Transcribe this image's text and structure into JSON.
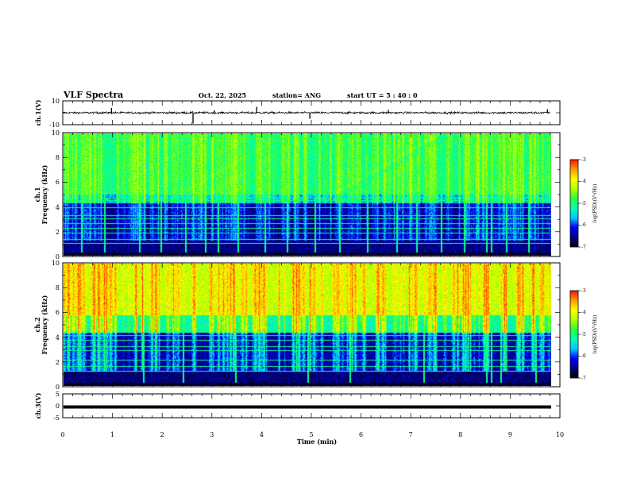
{
  "header": {
    "title": "VLF Spectra",
    "date": "Oct. 22, 2025",
    "station": "station= ANG",
    "start_ut": "start  UT =   5  : 40 : 0"
  },
  "colors": {
    "background": "#ffffff",
    "axis": "#000000",
    "colormap": [
      "#000000",
      "#00008b",
      "#0000ff",
      "#00c8ff",
      "#00ffb4",
      "#28ff3c",
      "#b4ff00",
      "#ffff00",
      "#ffa000",
      "#ff1400",
      "#f0f0ff"
    ]
  },
  "chart_data": [
    {
      "type": "line",
      "name": "ch1-waveform",
      "ylabel": "ch.1(V)",
      "ylim": [
        -10,
        10
      ],
      "y_ticks": [
        "10",
        "-10"
      ],
      "xlim": [
        0,
        10
      ],
      "baseline": 0,
      "noise_amplitude": 1.2,
      "spikes": [
        {
          "x": 0.98,
          "y": 4
        },
        {
          "x": 2.62,
          "y": -9
        },
        {
          "x": 3.05,
          "y": 2
        },
        {
          "x": 3.9,
          "y": 5
        },
        {
          "x": 4.97,
          "y": -5
        },
        {
          "x": 6.55,
          "y": 2.5
        },
        {
          "x": 9.75,
          "y": 3
        }
      ]
    },
    {
      "type": "heatmap",
      "name": "ch1-spectrogram",
      "ylabel": "ch.1\nFrequency (kHz)",
      "ylim": [
        0,
        10
      ],
      "y_ticks": [
        "0",
        "2",
        "4",
        "6",
        "8",
        "10"
      ],
      "xlim": [
        0,
        9.8
      ],
      "color_scale": {
        "min": -7,
        "max": -3,
        "label": "log(PSD)(V²/Hz)",
        "ticks": [
          "-3",
          "-4",
          "-5",
          "-6",
          "-7"
        ]
      },
      "band_levels": [
        {
          "f": [
            0,
            4.3
          ],
          "level": -6.55
        },
        {
          "f": [
            4.3,
            5.0
          ],
          "level": -5.7
        },
        {
          "f": [
            5.0,
            10
          ],
          "level": -5.05
        }
      ],
      "noise_db": 0.55,
      "bursts_per_min": 7,
      "burst_level": -4.6,
      "hlines_khz": [
        1.0,
        1.3,
        1.8,
        2.2,
        2.6,
        3.0,
        3.3,
        3.9,
        4.5,
        4.7
      ],
      "vline_bursts_min": [
        0.35,
        0.82,
        1.52,
        1.95,
        2.45,
        2.85,
        3.1,
        3.5,
        4.05,
        4.5,
        5.05,
        5.55,
        6.1,
        6.7,
        7.1,
        7.6,
        8.05,
        8.5,
        8.6,
        8.9,
        9.35
      ]
    },
    {
      "type": "heatmap",
      "name": "ch2-spectrogram",
      "ylabel": "ch.2\nFrequency (kHz)",
      "ylim": [
        0,
        10
      ],
      "y_ticks": [
        "0",
        "2",
        "4",
        "6",
        "8",
        "10"
      ],
      "xlim": [
        0,
        9.8
      ],
      "color_scale": {
        "min": -7,
        "max": -3,
        "label": "log(PSD)(V²/Hz)",
        "ticks": [
          "-3",
          "-4",
          "-5",
          "-6",
          "-7"
        ]
      },
      "band_levels": [
        {
          "f": [
            0,
            1.2
          ],
          "level": -6.6
        },
        {
          "f": [
            1.2,
            4.4
          ],
          "level": -6.45
        },
        {
          "f": [
            4.4,
            5.8
          ],
          "level": -5.2
        },
        {
          "f": [
            5.8,
            10
          ],
          "level": -4.2
        }
      ],
      "noise_db": 0.55,
      "bursts_per_min": 5,
      "burst_level": -3.6,
      "hlines_khz": [
        1.2,
        1.6,
        2.1,
        2.9,
        3.2,
        3.7,
        4.1,
        4.4
      ],
      "vline_bursts_min": [
        1.6,
        2.4,
        3.45,
        4.9,
        5.75,
        7.25,
        8.5,
        8.6,
        8.8,
        9.5
      ]
    },
    {
      "type": "line",
      "name": "ch3-waveform",
      "ylabel": "ch.3(V)",
      "ylim": [
        -5,
        5
      ],
      "y_ticks": [
        "5",
        "0",
        "-5"
      ],
      "xlim": [
        0,
        10
      ],
      "constant_value": -0.5
    }
  ],
  "x_axis": {
    "label": "Time (min)",
    "ticks": [
      "0",
      "1",
      "2",
      "3",
      "4",
      "5",
      "6",
      "7",
      "8",
      "9",
      "10"
    ]
  }
}
